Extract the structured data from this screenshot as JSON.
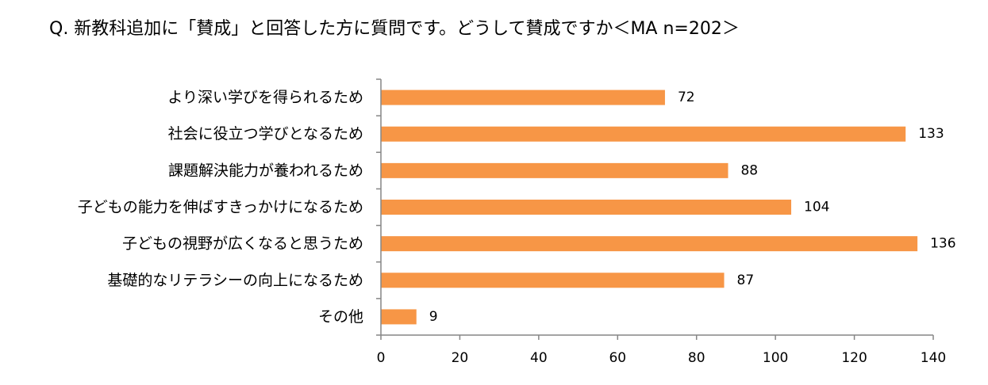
{
  "chart_data": {
    "type": "bar",
    "orientation": "horizontal",
    "title": "Q. 新教科追加に「賛成」と回答した方に質問です。どうして賛成ですか＜MA n=202＞",
    "categories": [
      "より深い学びを得られるため",
      "社会に役立つ学びとなるため",
      "課題解決能力が養われるため",
      "子どもの能力を伸ばすきっかけになるため",
      "子どもの視野が広くなると思うため",
      "基礎的なリテラシーの向上になるため",
      "その他"
    ],
    "values": [
      72,
      133,
      88,
      104,
      136,
      87,
      9
    ],
    "xlim": [
      0,
      140
    ],
    "xticks": [
      0,
      20,
      40,
      60,
      80,
      100,
      120,
      140
    ],
    "grid": false,
    "bar_color": "#F79646",
    "axis_color": "#868686"
  }
}
